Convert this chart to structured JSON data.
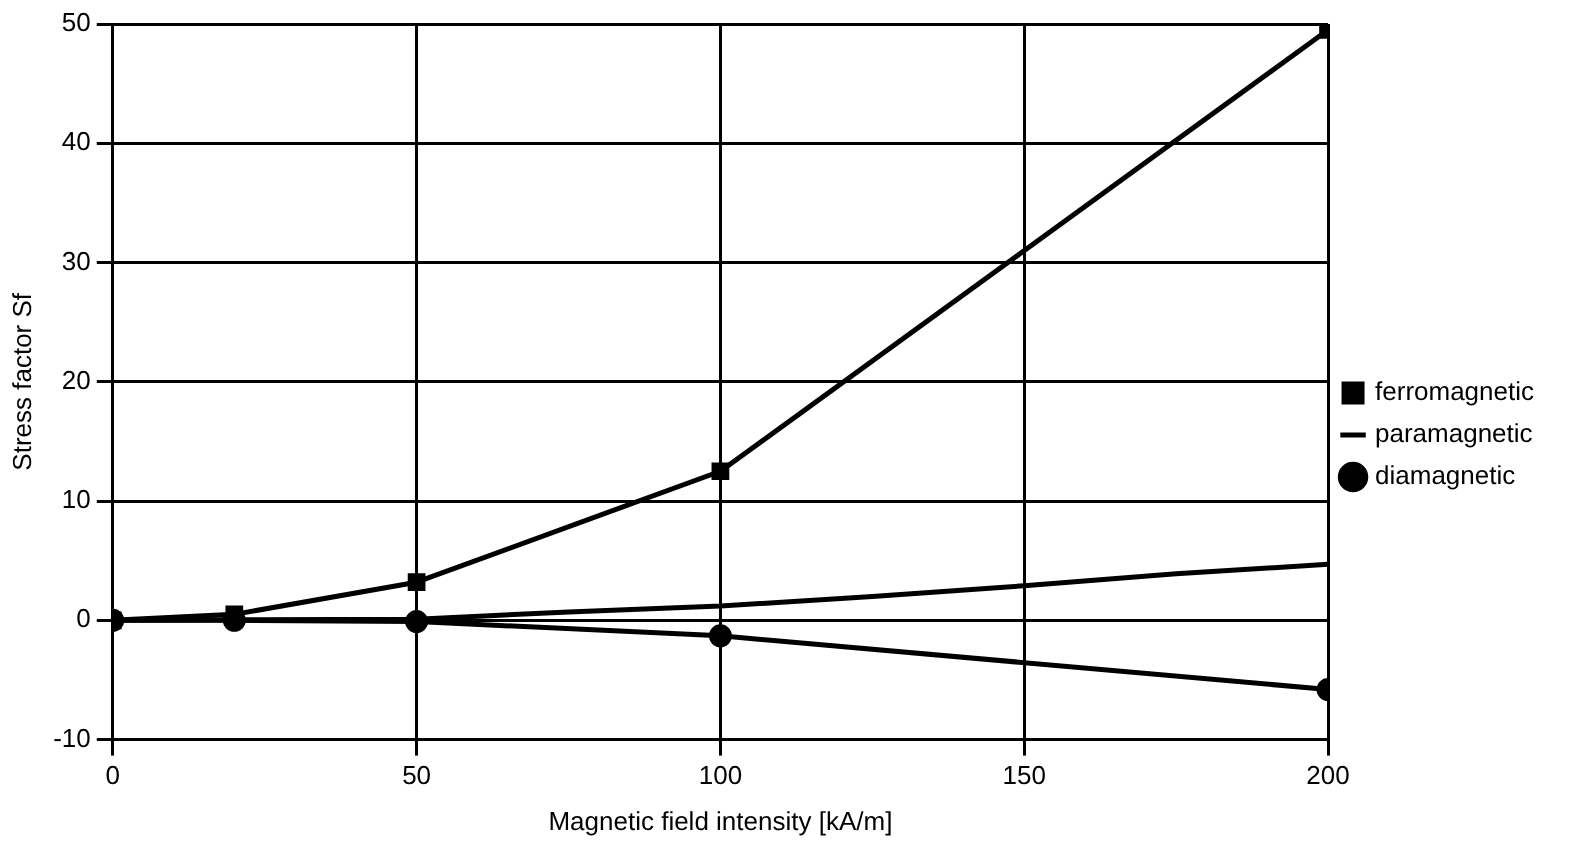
{
  "chart_data": {
    "type": "line",
    "xlabel": "Magnetic field intensity [kA/m]",
    "ylabel": "Stress factor Sf",
    "xlim": [
      0,
      200
    ],
    "xticks": [
      0,
      50,
      100,
      150,
      200
    ],
    "ylim": [
      -10,
      50
    ],
    "yticks": [
      -10,
      0,
      10,
      20,
      30,
      40,
      50
    ],
    "grid": true,
    "legend": "right",
    "line_style": "solid",
    "series": [
      {
        "name": "ferromagnetic",
        "color": "#000000",
        "marker": "square",
        "x": [
          0,
          20,
          50,
          100,
          200
        ],
        "values": [
          0,
          0.5,
          3.2,
          12.5,
          49.5
        ]
      },
      {
        "name": "paramagnetic",
        "color": "#000000",
        "marker": "none",
        "x": [
          0,
          50,
          75,
          100,
          125,
          150,
          175,
          200
        ],
        "values": [
          0,
          0.1,
          0.7,
          1.2,
          2.0,
          2.9,
          3.9,
          4.7
        ]
      },
      {
        "name": "diamagnetic",
        "color": "#000000",
        "marker": "circle",
        "x": [
          0,
          20,
          50,
          100,
          200
        ],
        "values": [
          0,
          0,
          -0.1,
          -1.3,
          -5.8
        ]
      }
    ]
  }
}
